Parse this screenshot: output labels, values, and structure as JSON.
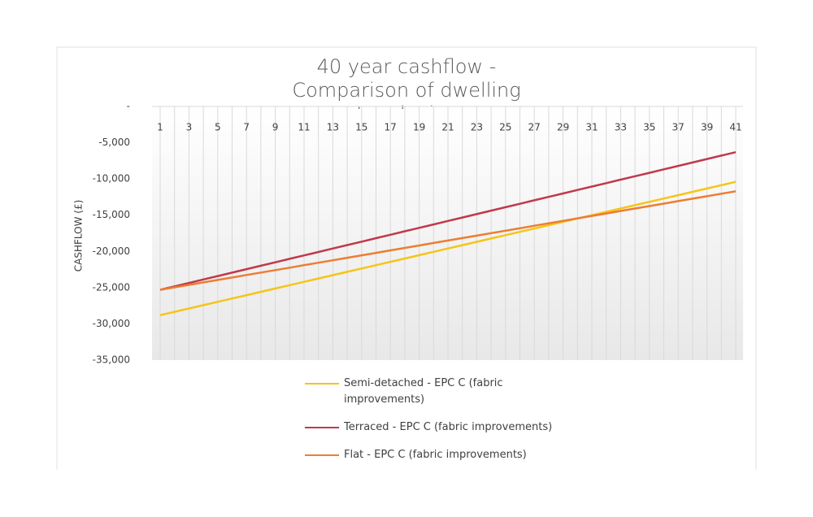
{
  "chart_data": {
    "type": "line",
    "title": "40 year cashflow - Comparison of dwelling typologies",
    "y_label": "CASHFLOW (£)",
    "categories": [
      1,
      null,
      3,
      null,
      5,
      null,
      7,
      null,
      9,
      null,
      11,
      null,
      13,
      null,
      15,
      null,
      17,
      null,
      19,
      null,
      21,
      null,
      23,
      null,
      25,
      null,
      27,
      null,
      29,
      null,
      31,
      null,
      33,
      null,
      35,
      null,
      37,
      null,
      39,
      null,
      41
    ],
    "series": [
      {
        "name": "Semi-detached - EPC C (fabric improvements)",
        "color": "#f5c518",
        "values": [
          -28800,
          -28340,
          -27880,
          -27420,
          -26960,
          -26500,
          -26040,
          -25580,
          -25120,
          -24660,
          -24200,
          -23740,
          -23280,
          -22820,
          -22360,
          -21900,
          -21440,
          -20980,
          -20520,
          -20060,
          -19600,
          -19140,
          -18680,
          -18220,
          -17760,
          -17300,
          -16840,
          -16380,
          -15920,
          -15460,
          -15000,
          -14540,
          -14080,
          -13620,
          -13160,
          -12700,
          -12240,
          -11780,
          -11320,
          -10860,
          -10400
        ]
      },
      {
        "name": "Terraced - EPC C (fabric improvements)",
        "color": "#c0394b",
        "values": [
          -25300,
          -24825,
          -24350,
          -23875,
          -23400,
          -22925,
          -22450,
          -21975,
          -21500,
          -21025,
          -20550,
          -20075,
          -19600,
          -19125,
          -18650,
          -18175,
          -17700,
          -17225,
          -16750,
          -16275,
          -15800,
          -15325,
          -14850,
          -14375,
          -13900,
          -13425,
          -12950,
          -12475,
          -12000,
          -11525,
          -11050,
          -10575,
          -10100,
          -9625,
          -9150,
          -8675,
          -8200,
          -7725,
          -7250,
          -6775,
          -6300
        ]
      },
      {
        "name": "Flat - EPC C (fabric improvements)",
        "color": "#ed7d31",
        "values": [
          -25300,
          -24960,
          -24620,
          -24280,
          -23940,
          -23600,
          -23260,
          -22920,
          -22580,
          -22240,
          -21900,
          -21560,
          -21220,
          -20880,
          -20540,
          -20200,
          -19860,
          -19520,
          -19180,
          -18840,
          -18500,
          -18160,
          -17820,
          -17480,
          -17140,
          -16800,
          -16460,
          -16120,
          -15780,
          -15440,
          -15100,
          -14760,
          -14420,
          -14080,
          -13740,
          -13400,
          -13060,
          -12720,
          -12380,
          -12040,
          -11700
        ]
      }
    ],
    "ylim": [
      -35000,
      0
    ],
    "yticks": [
      {
        "value": 0,
        "label": "-"
      },
      {
        "value": -5000,
        "label": "-5,000"
      },
      {
        "value": -10000,
        "label": "-10,000"
      },
      {
        "value": -15000,
        "label": "-15,000"
      },
      {
        "value": -20000,
        "label": "-20,000"
      },
      {
        "value": -25000,
        "label": "-25,000"
      },
      {
        "value": -30000,
        "label": "-30,000"
      },
      {
        "value": -35000,
        "label": "-35,000"
      }
    ],
    "xgrid": true,
    "legend": "bottom"
  }
}
